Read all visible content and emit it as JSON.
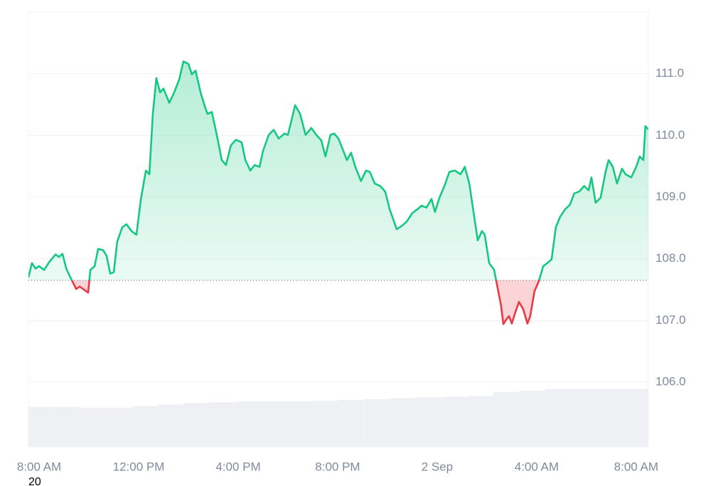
{
  "chart_data": {
    "type": "line",
    "x": [
      -0.43,
      -0.29,
      -0.14,
      0,
      0.2,
      0.43,
      0.66,
      0.8,
      0.94,
      1.09,
      1.29,
      1.49,
      1.63,
      1.8,
      1.97,
      2.06,
      2.23,
      2.37,
      2.57,
      2.71,
      2.86,
      3.0,
      3.14,
      3.34,
      3.51,
      3.71,
      3.91,
      4.09,
      4.29,
      4.43,
      4.57,
      4.71,
      4.86,
      5.0,
      5.23,
      5.43,
      5.63,
      5.8,
      6.0,
      6.14,
      6.29,
      6.49,
      6.66,
      6.77,
      6.94,
      7.14,
      7.34,
      7.51,
      7.71,
      7.91,
      8.14,
      8.29,
      8.49,
      8.66,
      8.86,
      9.0,
      9.23,
      9.43,
      9.63,
      9.86,
      10.0,
      10.14,
      10.29,
      10.49,
      10.71,
      10.94,
      11.14,
      11.34,
      11.51,
      11.71,
      11.86,
      12.03,
      12.2,
      12.37,
      12.54,
      12.71,
      12.94,
      13.14,
      13.29,
      13.49,
      13.71,
      13.91,
      14.09,
      14.2,
      14.37,
      14.57,
      14.77,
      15.0,
      15.2,
      15.37,
      15.57,
      15.77,
      15.91,
      16.09,
      16.29,
      16.49,
      16.71,
      16.94,
      17.11,
      17.29,
      17.51,
      17.63,
      17.8,
      17.91,
      18.09,
      18.29,
      18.43,
      18.57,
      18.66,
      18.77,
      18.89,
      19.0,
      19.14,
      19.29,
      19.46,
      19.63,
      19.74,
      19.91,
      20.09,
      20.26,
      20.43,
      20.6,
      20.77,
      20.94,
      21.14,
      21.34,
      21.51,
      21.71,
      21.91,
      22.09,
      22.2,
      22.37,
      22.57,
      22.77,
      22.89,
      23.06,
      23.23,
      23.43,
      23.57,
      23.8,
      24.0,
      24.14,
      24.29,
      24.37,
      24.49
    ],
    "series": [
      {
        "color": "#16c784",
        "values": [
          107.7,
          107.93,
          107.84,
          107.88,
          107.82,
          107.96,
          108.07,
          108.03,
          108.08,
          107.84,
          107.67,
          107.51,
          107.55,
          107.5,
          107.45,
          107.82,
          107.88,
          108.16,
          108.14,
          108.05,
          107.76,
          107.78,
          108.28,
          108.51,
          108.56,
          108.45,
          108.39,
          108.97,
          109.43,
          109.37,
          110.35,
          110.93,
          110.7,
          110.76,
          110.53,
          110.7,
          110.91,
          111.2,
          111.16,
          110.99,
          111.05,
          110.7,
          110.47,
          110.35,
          110.38,
          110.01,
          109.6,
          109.52,
          109.84,
          109.93,
          109.89,
          109.6,
          109.43,
          109.52,
          109.49,
          109.75,
          110.01,
          110.09,
          109.95,
          110.03,
          110.01,
          110.24,
          110.49,
          110.35,
          110.01,
          110.12,
          110.01,
          109.92,
          109.66,
          110.01,
          110.03,
          109.95,
          109.78,
          109.6,
          109.72,
          109.49,
          109.26,
          109.43,
          109.41,
          109.22,
          109.18,
          109.09,
          108.8,
          108.68,
          108.48,
          108.53,
          108.6,
          108.74,
          108.8,
          108.86,
          108.83,
          108.97,
          108.76,
          108.99,
          109.18,
          109.41,
          109.43,
          109.37,
          109.49,
          109.22,
          108.62,
          108.3,
          108.45,
          108.39,
          107.93,
          107.82,
          107.53,
          107.24,
          106.94,
          107.01,
          107.07,
          106.95,
          107.13,
          107.3,
          107.18,
          106.95,
          107.07,
          107.47,
          107.64,
          107.88,
          107.93,
          107.99,
          108.51,
          108.68,
          108.8,
          108.88,
          109.06,
          109.09,
          109.18,
          109.11,
          109.32,
          108.91,
          108.99,
          109.41,
          109.6,
          109.49,
          109.22,
          109.46,
          109.37,
          109.32,
          109.49,
          109.66,
          109.6,
          110.15,
          110.1
        ]
      }
    ],
    "below_color": "#ea3943",
    "baseline": 107.65,
    "volume": {
      "color": "#eef0f4",
      "axis": "y2",
      "values": [
        51,
        51,
        50,
        50,
        52,
        54,
        56,
        57,
        58,
        58,
        58,
        59,
        60,
        61,
        62,
        63,
        64,
        65,
        70,
        72,
        74,
        74,
        74,
        74
      ]
    },
    "y2lim": [
      0,
      100
    ],
    "xlim": [
      -0.43,
      24.49
    ],
    "xticks": [
      {
        "value": 0,
        "label": "8:00 AM"
      },
      {
        "value": 4,
        "label": "12:00 PM"
      },
      {
        "value": 8,
        "label": "4:00 PM"
      },
      {
        "value": 12,
        "label": "8:00 PM"
      },
      {
        "value": 16,
        "label": "2 Sep"
      },
      {
        "value": 20,
        "label": "4:00 AM"
      },
      {
        "value": 24,
        "label": "8:00 AM"
      }
    ],
    "ylim": [
      104.95,
      112.0
    ],
    "yticks": [
      {
        "value": 106,
        "label": "106.0"
      },
      {
        "value": 107,
        "label": "107.0"
      },
      {
        "value": 108,
        "label": "108.0"
      },
      {
        "value": 109,
        "label": "109.0"
      },
      {
        "value": 110,
        "label": "110.0"
      },
      {
        "value": 111,
        "label": "111.0"
      }
    ],
    "grid": true,
    "footnote": "20"
  }
}
